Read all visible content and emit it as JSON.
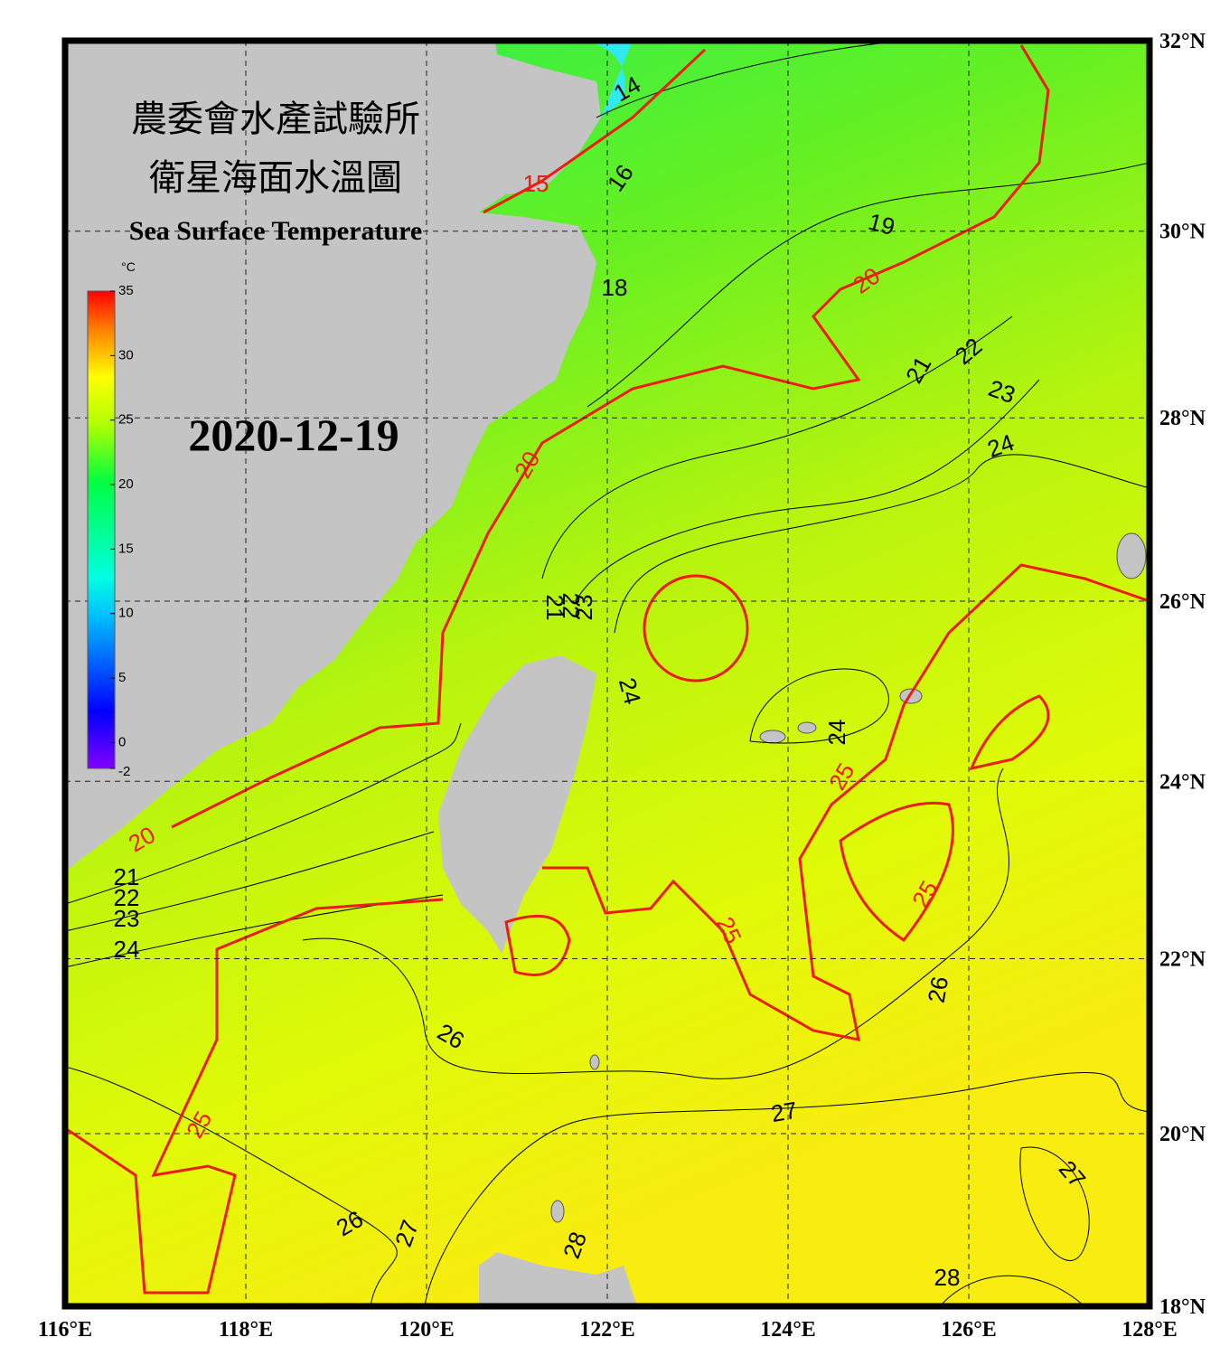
{
  "title_zh_1": "農委會水產試驗所",
  "title_zh_2": "衛星海面水溫圖",
  "title_en": "Sea Surface Temperature",
  "date": "2020-12-19",
  "colorbar": {
    "unit": "°C",
    "range": [
      -2,
      35
    ],
    "ticks": [
      35,
      30,
      25,
      20,
      15,
      10,
      5,
      0,
      -2
    ]
  },
  "map": {
    "lonlim": [
      116,
      128
    ],
    "latlim": [
      18,
      32
    ],
    "lonticks": [
      {
        "value": 116,
        "label": "116°E"
      },
      {
        "value": 118,
        "label": "118°E"
      },
      {
        "value": 120,
        "label": "120°E"
      },
      {
        "value": 122,
        "label": "122°E"
      },
      {
        "value": 124,
        "label": "124°E"
      },
      {
        "value": 126,
        "label": "126°E"
      },
      {
        "value": 128,
        "label": "128°E"
      }
    ],
    "latticks": [
      {
        "value": 32,
        "label": "32°N"
      },
      {
        "value": 30,
        "label": "30°N"
      },
      {
        "value": 28,
        "label": "28°N"
      },
      {
        "value": 26,
        "label": "26°N"
      },
      {
        "value": 24,
        "label": "24°N"
      },
      {
        "value": 22,
        "label": "22°N"
      },
      {
        "value": 20,
        "label": "20°N"
      },
      {
        "value": 18,
        "label": "18°N"
      }
    ],
    "grid": true
  },
  "contour_labels": [
    "14",
    "15",
    "16",
    "19",
    "20",
    "18",
    "21",
    "22",
    "23",
    "24",
    "20",
    "21",
    "22",
    "23",
    "24",
    "24",
    "25",
    "20",
    "21",
    "22",
    "23",
    "24",
    "25",
    "25",
    "26",
    "26",
    "27",
    "25",
    "27",
    "26",
    "27",
    "28",
    "28"
  ]
}
